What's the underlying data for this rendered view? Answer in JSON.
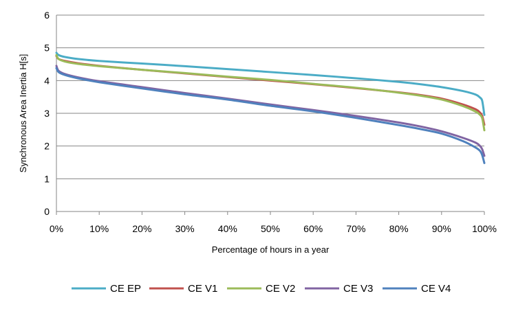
{
  "chart_data": {
    "type": "line",
    "title": "",
    "xlabel": "Percentage of hours in a year",
    "ylabel": "Synchronous Area Inertia H[s]",
    "xlim": [
      0,
      100
    ],
    "ylim": [
      0,
      6
    ],
    "x_ticks": [
      "0%",
      "10%",
      "20%",
      "30%",
      "40%",
      "50%",
      "60%",
      "70%",
      "80%",
      "90%",
      "100%"
    ],
    "y_ticks": [
      "0",
      "1",
      "2",
      "3",
      "4",
      "5",
      "6"
    ],
    "grid": "horizontal",
    "legend_position": "bottom",
    "x": [
      0,
      0.5,
      2,
      5,
      10,
      20,
      30,
      40,
      50,
      60,
      70,
      80,
      85,
      90,
      95,
      98,
      99,
      99.5,
      100
    ],
    "series": [
      {
        "name": "CE EP",
        "color": "#4bacc6",
        "values": [
          4.85,
          4.78,
          4.72,
          4.66,
          4.6,
          4.52,
          4.44,
          4.35,
          4.26,
          4.17,
          4.07,
          3.96,
          3.89,
          3.8,
          3.68,
          3.57,
          3.48,
          3.38,
          2.95
        ]
      },
      {
        "name": "CE V1",
        "color": "#c0504d",
        "values": [
          4.75,
          4.66,
          4.6,
          4.53,
          4.45,
          4.33,
          4.22,
          4.11,
          4.0,
          3.89,
          3.77,
          3.64,
          3.56,
          3.45,
          3.27,
          3.12,
          3.02,
          2.92,
          2.65
        ]
      },
      {
        "name": "CE V2",
        "color": "#9bbb59",
        "values": [
          4.78,
          4.66,
          4.58,
          4.51,
          4.44,
          4.33,
          4.23,
          4.12,
          4.02,
          3.9,
          3.78,
          3.63,
          3.54,
          3.42,
          3.22,
          3.05,
          2.95,
          2.85,
          2.48
        ]
      },
      {
        "name": "CE V3",
        "color": "#8064a2",
        "values": [
          4.45,
          4.3,
          4.2,
          4.1,
          3.98,
          3.8,
          3.62,
          3.45,
          3.27,
          3.1,
          2.92,
          2.72,
          2.6,
          2.45,
          2.25,
          2.1,
          2.0,
          1.9,
          1.7
        ]
      },
      {
        "name": "CE V4",
        "color": "#4f81bd",
        "values": [
          4.38,
          4.26,
          4.17,
          4.07,
          3.95,
          3.76,
          3.58,
          3.42,
          3.23,
          3.06,
          2.86,
          2.64,
          2.52,
          2.38,
          2.15,
          1.95,
          1.85,
          1.72,
          1.48
        ]
      }
    ]
  }
}
